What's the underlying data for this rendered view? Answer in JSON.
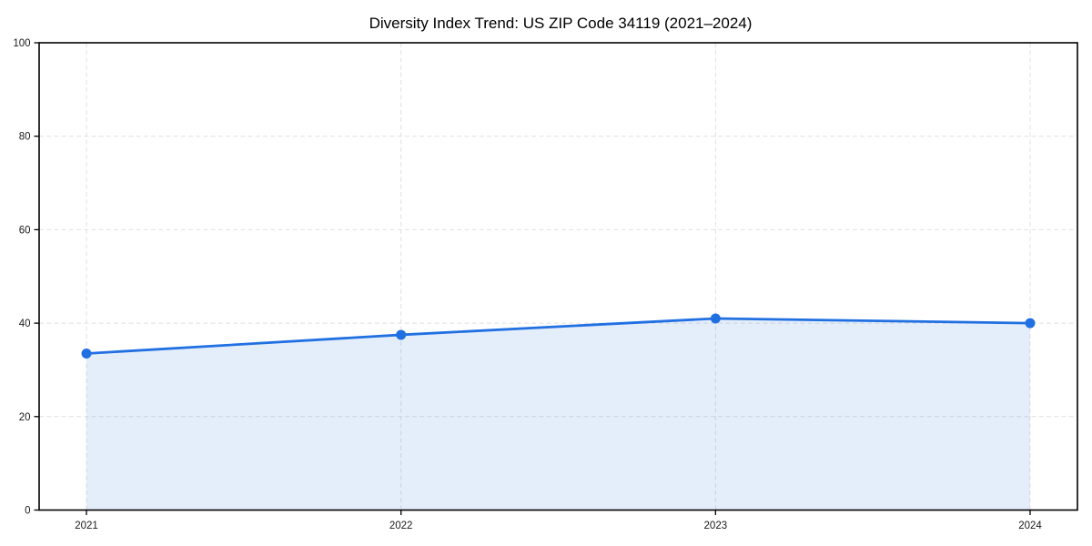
{
  "page": {
    "background": "#ffffff"
  },
  "chart_data": {
    "type": "line",
    "title": "Diversity Index Trend: US ZIP Code 34119 (2021–2024)",
    "x": [
      "2021",
      "2022",
      "2023",
      "2024"
    ],
    "series": [
      {
        "name": "Diversity Index",
        "values": [
          33.5,
          37.5,
          41,
          40
        ]
      }
    ],
    "ylim": [
      0,
      100
    ],
    "yticks": [
      0,
      20,
      40,
      60,
      80,
      100
    ],
    "grid": true,
    "grid_style": "dashed",
    "legend": "none",
    "area_fill": true,
    "markers": true,
    "colors": {
      "line": "#2170e2",
      "marker": "#2170e2",
      "area": "rgba(33, 112, 226, 0.12)",
      "grid": "#e0e0e0",
      "spine": "#000000",
      "tick_label": "#1a1a1a",
      "title": "#000000",
      "background": "#ffffff"
    }
  }
}
